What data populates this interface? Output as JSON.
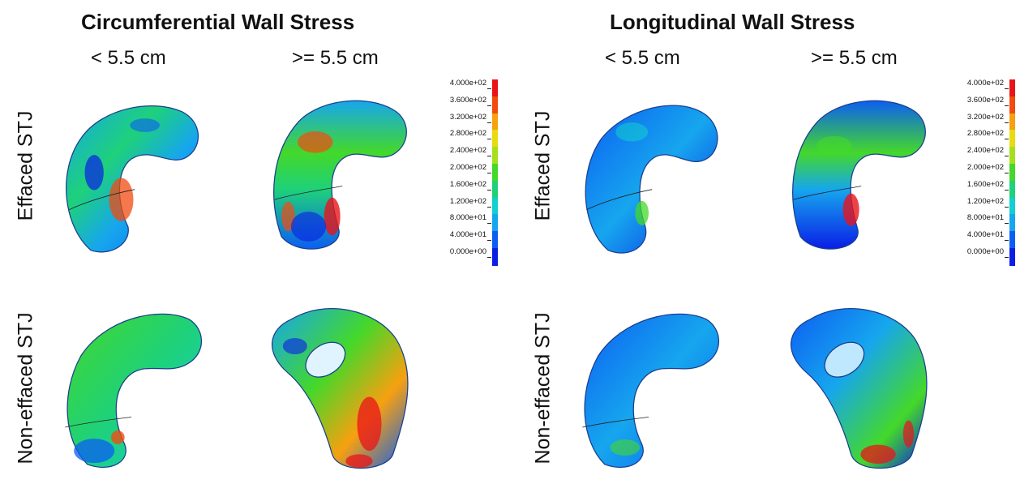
{
  "sections": [
    {
      "title": "Circumferential Wall Stress",
      "columns": [
        "< 5.5 cm",
        ">= 5.5 cm"
      ]
    },
    {
      "title": "Longitudinal Wall Stress",
      "columns": [
        "< 5.5 cm",
        ">= 5.5 cm"
      ]
    }
  ],
  "rows": [
    "Effaced STJ",
    "Non-effaced STJ"
  ],
  "legend": {
    "labels": [
      "4.000e+02",
      "3.600e+02",
      "3.200e+02",
      "2.800e+02",
      "2.400e+02",
      "2.000e+02",
      "1.600e+02",
      "1.200e+02",
      "8.000e+01",
      "4.000e+01",
      "0.000e+00"
    ],
    "colors": [
      "#e8141a",
      "#f24b10",
      "#f7a010",
      "#e8dc10",
      "#a6e01c",
      "#44d82a",
      "#1ed17a",
      "#12cfd0",
      "#16a6ee",
      "#0c5ef2",
      "#0a1ee6"
    ]
  }
}
